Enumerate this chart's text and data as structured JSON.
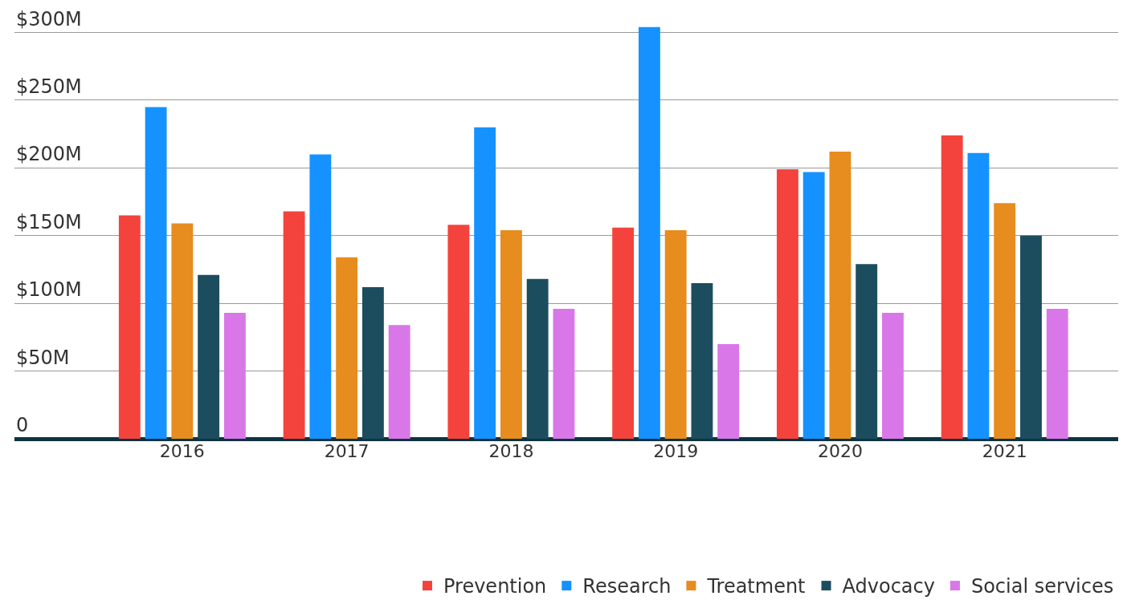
{
  "chart_data": {
    "type": "bar",
    "categories": [
      "2016",
      "2017",
      "2018",
      "2019",
      "2020",
      "2021"
    ],
    "series": [
      {
        "name": "Prevention",
        "color": "#f4433c",
        "values": [
          165,
          168,
          158,
          156,
          199,
          224
        ]
      },
      {
        "name": "Research",
        "color": "#1592ff",
        "values": [
          245,
          210,
          230,
          304,
          197,
          211
        ]
      },
      {
        "name": "Treatment",
        "color": "#e78c1e",
        "values": [
          159,
          134,
          154,
          154,
          212,
          174
        ]
      },
      {
        "name": "Advocacy",
        "color": "#1c4d5e",
        "values": [
          121,
          112,
          118,
          115,
          129,
          150
        ]
      },
      {
        "name": "Social services",
        "color": "#d977e8",
        "values": [
          93,
          84,
          96,
          70,
          93,
          96
        ]
      }
    ],
    "ylim": [
      0,
      324
    ],
    "yticks": [
      {
        "value": 0,
        "label": "0"
      },
      {
        "value": 50,
        "label": "$50M"
      },
      {
        "value": 100,
        "label": "$100M"
      },
      {
        "value": 150,
        "label": "$150M"
      },
      {
        "value": 200,
        "label": "$200M"
      },
      {
        "value": 250,
        "label": "$250M"
      },
      {
        "value": 300,
        "label": "$300M"
      }
    ],
    "grid": "y",
    "legend": "bottom right"
  }
}
